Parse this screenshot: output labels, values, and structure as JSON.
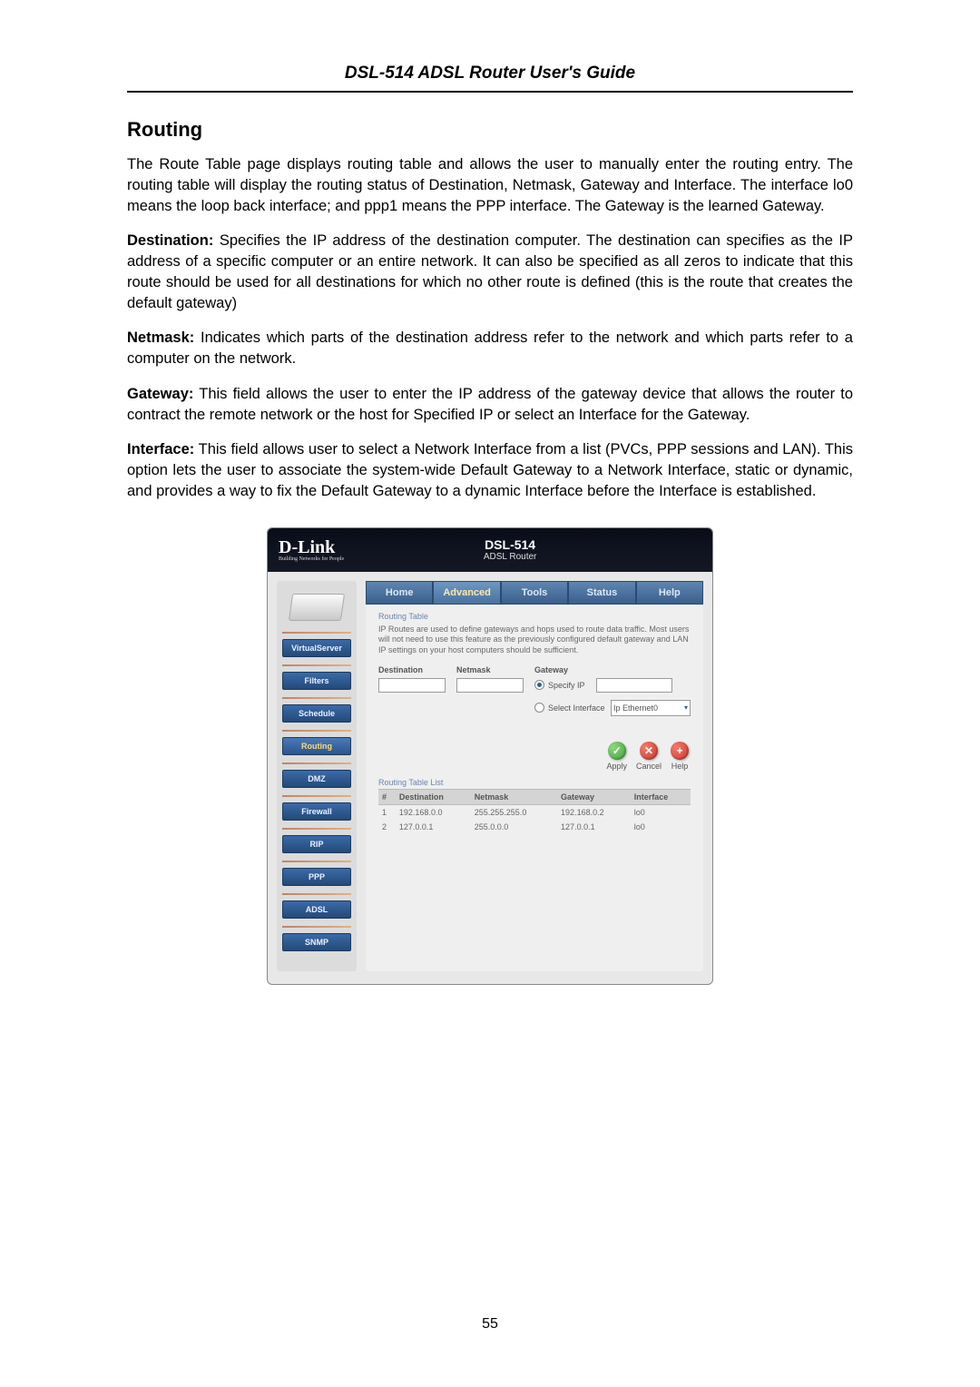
{
  "header": {
    "title": "DSL-514 ADSL Router User's Guide"
  },
  "section": {
    "heading": "Routing"
  },
  "paragraphs": {
    "intro": "The Route Table page displays routing table and allows the user to manually enter the routing entry. The routing table will display the routing status of Destination, Netmask, Gateway and Interface. The interface lo0 means the loop back interface; and ppp1 means the PPP interface. The Gateway is the learned Gateway.",
    "destination_label": "Destination:",
    "destination": " Specifies the IP address of the destination computer. The destination can specifies as the IP address of a specific computer or an entire network. It can also be specified as all zeros to indicate that this route should be used for all destinations for which no other route is defined (this is the route that creates the default gateway)",
    "netmask_label": "Netmask:",
    "netmask": " Indicates which parts of the destination address refer to the network and which parts refer to a computer on the network.",
    "gateway_label": "Gateway:",
    "gateway": " This field allows the user to enter the IP address of the gateway device that allows the router to contract the remote network or the host for Specified IP or select an Interface for the Gateway.",
    "interface_label": "Interface:",
    "interface": " This field allows user to select a Network Interface from a list (PVCs, PPP sessions and LAN). This option lets the user to associate the system-wide Default Gateway to a Network Interface, static or dynamic, and provides a way to fix the Default Gateway to a dynamic Interface before the Interface is established."
  },
  "page_number": "55",
  "router": {
    "brand": "D-Link",
    "brand_tag": "Building Networks for People",
    "model": "DSL-514",
    "model_sub": "ADSL Router",
    "tabs": [
      "Home",
      "Advanced",
      "Tools",
      "Status",
      "Help"
    ],
    "active_tab": "Advanced",
    "sidebar": [
      "VirtualServer",
      "Filters",
      "Schedule",
      "Routing",
      "DMZ",
      "Firewall",
      "RIP",
      "PPP",
      "ADSL",
      "SNMP"
    ],
    "active_side": "Routing",
    "subtitle": "Routing Table",
    "desc": "IP Routes are used to define gateways and hops used to route data traffic. Most users will not need to use this feature as the previously configured default gateway and LAN IP settings on your host computers should be sufficient.",
    "form": {
      "destination_label": "Destination",
      "netmask_label": "Netmask",
      "gateway_label": "Gateway",
      "specify_label": "Specify IP",
      "select_if_label": "Select Interface",
      "interface_value": "Ip Ethernet0"
    },
    "actions": {
      "apply": "Apply",
      "cancel": "Cancel",
      "help": "Help"
    },
    "table_title": "Routing Table List",
    "table": {
      "columns": [
        "#",
        "Destination",
        "Netmask",
        "Gateway",
        "Interface"
      ],
      "rows": [
        [
          "1",
          "192.168.0.0",
          "255.255.255.0",
          "192.168.0.2",
          "lo0"
        ],
        [
          "2",
          "127.0.0.1",
          "255.0.0.0",
          "127.0.0.1",
          "lo0"
        ]
      ]
    }
  }
}
